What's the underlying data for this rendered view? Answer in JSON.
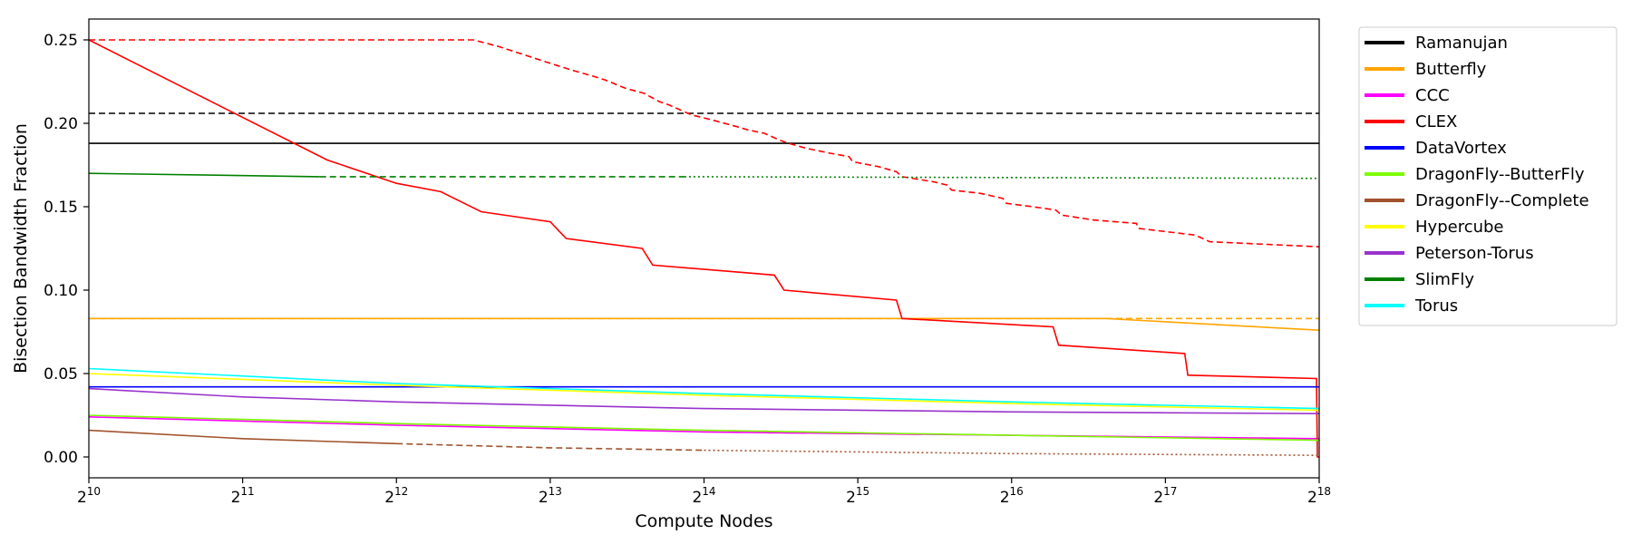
{
  "chart_data": {
    "type": "line",
    "xlabel": "Compute Nodes",
    "ylabel": "Bisection Bandwidth Fraction",
    "xscale": "log2",
    "xlim": [
      1024,
      262144
    ],
    "ylim": [
      -0.0125,
      0.2625
    ],
    "x_ticks": [
      {
        "value": 1024,
        "base": "2",
        "exp": "10"
      },
      {
        "value": 2048,
        "base": "2",
        "exp": "11"
      },
      {
        "value": 4096,
        "base": "2",
        "exp": "12"
      },
      {
        "value": 8192,
        "base": "2",
        "exp": "13"
      },
      {
        "value": 16384,
        "base": "2",
        "exp": "14"
      },
      {
        "value": 32768,
        "base": "2",
        "exp": "15"
      },
      {
        "value": 65536,
        "base": "2",
        "exp": "16"
      },
      {
        "value": 131072,
        "base": "2",
        "exp": "17"
      },
      {
        "value": 262144,
        "base": "2",
        "exp": "18"
      }
    ],
    "y_ticks": [
      {
        "value": 0.0,
        "label": "0.00"
      },
      {
        "value": 0.05,
        "label": "0.05"
      },
      {
        "value": 0.1,
        "label": "0.10"
      },
      {
        "value": 0.15,
        "label": "0.15"
      },
      {
        "value": 0.2,
        "label": "0.20"
      },
      {
        "value": 0.25,
        "label": "0.25"
      }
    ],
    "grid": false,
    "legend_position": "outside-right",
    "legend": [
      {
        "name": "Ramanujan",
        "color": "#000000"
      },
      {
        "name": "Butterfly",
        "color": "#ffa500"
      },
      {
        "name": "CCC",
        "color": "#ff00ff"
      },
      {
        "name": "CLEX",
        "color": "#ff0000"
      },
      {
        "name": "DataVortex",
        "color": "#0000ff"
      },
      {
        "name": "DragonFly--ButterFly",
        "color": "#7cfc00"
      },
      {
        "name": "DragonFly--Complete",
        "color": "#a0522d"
      },
      {
        "name": "Hypercube",
        "color": "#ffff00"
      },
      {
        "name": "Peterson-Torus",
        "color": "#9932cc"
      },
      {
        "name": "SlimFly",
        "color": "#008000"
      },
      {
        "name": "Torus",
        "color": "#00ffff"
      }
    ],
    "series": [
      {
        "name": "Ramanujan",
        "color": "#000000",
        "style": "solid",
        "x": [
          1024,
          262144
        ],
        "y": [
          0.188,
          0.188
        ]
      },
      {
        "name": "Ramanujan",
        "color": "#000000",
        "style": "dashed",
        "x": [
          1024,
          262144
        ],
        "y": [
          0.206,
          0.206
        ]
      },
      {
        "name": "Butterfly",
        "color": "#ffa500",
        "style": "dashed",
        "x": [
          1024,
          262144
        ],
        "y": [
          0.083,
          0.083
        ]
      },
      {
        "name": "Butterfly",
        "color": "#ffa500",
        "style": "solid",
        "x": [
          1024,
          100000,
          262144
        ],
        "y": [
          0.083,
          0.083,
          0.076
        ]
      },
      {
        "name": "CCC",
        "color": "#ff00ff",
        "style": "solid",
        "x": [
          1024,
          4096,
          16384,
          65536,
          262144
        ],
        "y": [
          0.024,
          0.019,
          0.015,
          0.013,
          0.011
        ]
      },
      {
        "name": "CLEX",
        "color": "#ff0000",
        "style": "dashed",
        "x": [
          1024,
          5793,
          6500,
          8192,
          9000,
          10000,
          10500,
          11500,
          12500,
          13400,
          14000,
          15500,
          17000,
          19000,
          20000,
          21500,
          23000,
          24000,
          26000,
          29000,
          31500,
          32000,
          36000,
          39000,
          40000,
          46000,
          49000,
          50000,
          57000,
          63000,
          64000,
          72000,
          80000,
          82000,
          95000,
          115000,
          116000,
          150000,
          160000,
          262144
        ],
        "y": [
          0.25,
          0.25,
          0.246,
          0.236,
          0.232,
          0.228,
          0.226,
          0.221,
          0.218,
          0.213,
          0.211,
          0.205,
          0.202,
          0.198,
          0.196,
          0.194,
          0.19,
          0.188,
          0.185,
          0.182,
          0.18,
          0.177,
          0.174,
          0.171,
          0.168,
          0.165,
          0.163,
          0.16,
          0.158,
          0.155,
          0.152,
          0.15,
          0.148,
          0.145,
          0.142,
          0.14,
          0.137,
          0.133,
          0.129,
          0.126
        ]
      },
      {
        "name": "CLEX",
        "color": "#ff0000",
        "style": "solid",
        "x": [
          1024,
          3000,
          4096,
          5000,
          6000,
          8192,
          8800,
          12400,
          13000,
          22500,
          23500,
          39000,
          40000,
          79000,
          81000,
          143000,
          145000,
          259000,
          260000,
          262144
        ],
        "y": [
          0.25,
          0.178,
          0.164,
          0.159,
          0.147,
          0.141,
          0.131,
          0.125,
          0.115,
          0.109,
          0.1,
          0.094,
          0.083,
          0.078,
          0.067,
          0.062,
          0.049,
          0.047,
          0.0,
          0.0
        ]
      },
      {
        "name": "DataVortex",
        "color": "#0000ff",
        "style": "solid",
        "x": [
          1024,
          262144
        ],
        "y": [
          0.042,
          0.042
        ]
      },
      {
        "name": "DragonFly--ButterFly",
        "color": "#7cfc00",
        "style": "solid",
        "x": [
          1024,
          4096,
          16384,
          65536,
          262144
        ],
        "y": [
          0.025,
          0.02,
          0.016,
          0.013,
          0.01
        ]
      },
      {
        "name": "DragonFly--Complete",
        "color": "#a0522d",
        "style": "solid",
        "x": [
          1024,
          2048,
          4096
        ],
        "y": [
          0.016,
          0.011,
          0.008
        ]
      },
      {
        "name": "DragonFly--Complete",
        "color": "#a0522d",
        "style": "dashed",
        "x": [
          4096,
          8192,
          16384
        ],
        "y": [
          0.008,
          0.0055,
          0.004
        ]
      },
      {
        "name": "DragonFly--Complete",
        "color": "#a0522d",
        "style": "dotted",
        "x": [
          16384,
          65536,
          262144
        ],
        "y": [
          0.004,
          0.002,
          0.001
        ]
      },
      {
        "name": "Hypercube",
        "color": "#ffff00",
        "style": "solid",
        "x": [
          1024,
          4096,
          16384,
          65536,
          262144
        ],
        "y": [
          0.05,
          0.043,
          0.037,
          0.032,
          0.028
        ]
      },
      {
        "name": "Peterson-Torus",
        "color": "#9932cc",
        "style": "solid",
        "x": [
          1024,
          2048,
          4096,
          16384,
          65536,
          262144
        ],
        "y": [
          0.041,
          0.036,
          0.033,
          0.029,
          0.027,
          0.026
        ]
      },
      {
        "name": "SlimFly",
        "color": "#008000",
        "style": "solid",
        "x": [
          1024,
          2900
        ],
        "y": [
          0.17,
          0.168
        ]
      },
      {
        "name": "SlimFly",
        "color": "#008000",
        "style": "dashed",
        "x": [
          2900,
          15000
        ],
        "y": [
          0.168,
          0.168
        ]
      },
      {
        "name": "SlimFly",
        "color": "#008000",
        "style": "dotted",
        "x": [
          15000,
          262144
        ],
        "y": [
          0.168,
          0.167
        ]
      },
      {
        "name": "Torus",
        "color": "#00ffff",
        "style": "solid",
        "x": [
          1024,
          4096,
          16384,
          65536,
          262144
        ],
        "y": [
          0.053,
          0.044,
          0.038,
          0.033,
          0.029
        ]
      }
    ]
  }
}
